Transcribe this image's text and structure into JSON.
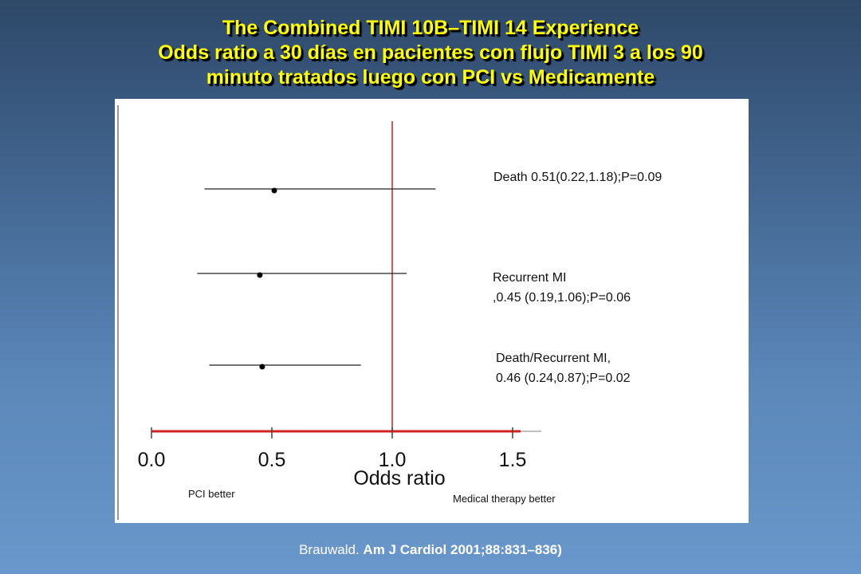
{
  "title": {
    "line1": "The Combined TIMI 10B–TIMI 14 Experience",
    "line2": "Odds ratio  a 30 días en pacientes con flujo TIMI 3 a los 90",
    "line3": "minuto tratados luego con PCI vs Medicamente"
  },
  "citation": {
    "author": "Brauwald. ",
    "journal": "Am J Cardiol 2001;88:831–836)"
  },
  "chart_data": {
    "type": "forest",
    "xlabel": "Odds ratio",
    "xlim": [
      0.0,
      1.5
    ],
    "x_ticks": [
      0.0,
      0.5,
      1.0,
      1.5
    ],
    "x_tick_labels": [
      "0.0",
      "0.5",
      "1.0",
      "1.5"
    ],
    "reference_line": 1.0,
    "left_note": "PCI better",
    "right_note": "Medical therapy better",
    "rows": [
      {
        "label_lines": [
          "Death 0.51(0.22,1.18);P=0.09"
        ],
        "or": 0.51,
        "ci_low": 0.22,
        "ci_high": 1.18,
        "p": 0.09
      },
      {
        "label_lines": [
          "Recurrent MI",
          ",0.45 (0.19,1.06);P=0.06"
        ],
        "or": 0.45,
        "ci_low": 0.19,
        "ci_high": 1.06,
        "p": 0.06
      },
      {
        "label_lines": [
          "Death/Recurrent MI,",
          " 0.46 (0.24,0.87);P=0.02"
        ],
        "or": 0.46,
        "ci_low": 0.24,
        "ci_high": 0.87,
        "p": 0.02
      }
    ],
    "colors": {
      "reference_line": "#c8302c",
      "axis_line": "#d42020",
      "ci_line": "#222222"
    }
  }
}
